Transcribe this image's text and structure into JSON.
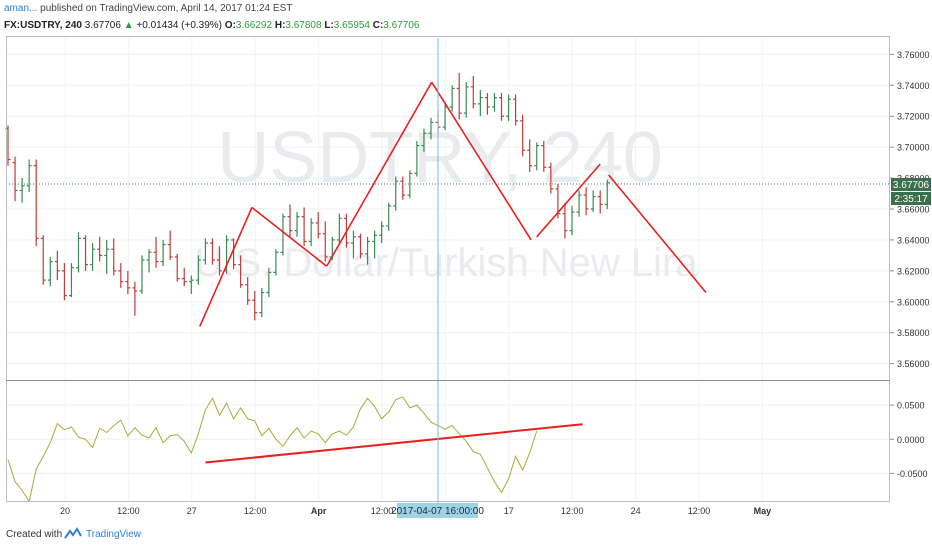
{
  "header": {
    "author": "aman...",
    "published": "published on TradingView.com, April 14, 2017 01:24 EST",
    "symbol": "FX:USDTRY, 240",
    "last": "3.67706",
    "change_arrow": "▲",
    "change": "+0.01434 (+0.39%)",
    "o_label": "O:",
    "o_value": "3.66292",
    "h_label": "H:",
    "h_value": "3.67808",
    "l_label": "L:",
    "l_value": "3.65954",
    "c_label": "C:",
    "c_value": "3.67706"
  },
  "footer": {
    "created_with": "Created with",
    "brand": "TradingView"
  },
  "colors": {
    "up": "#3a8a55",
    "down": "#c23b3b",
    "drawing": "#e8211f",
    "oscillator": "#a7ac3a",
    "crosshair": "#6fc0de",
    "label_bg": "#1f2a37",
    "crosshair_label_bg": "#9ed2e6"
  },
  "chart_data": {
    "type": "ohlc",
    "watermark": {
      "symbol": "USDTRY, 240",
      "name": "U.S. Dollar/Turkish New Lira"
    },
    "price_axis": {
      "ylim": [
        3.552,
        3.768
      ],
      "ticks": [
        "3.56000",
        "3.58000",
        "3.60000",
        "3.62000",
        "3.64000",
        "3.66000",
        "3.68000",
        "3.70000",
        "3.72000",
        "3.74000",
        "3.76000"
      ]
    },
    "current_price": "3.67706",
    "countdown": "2:35:17",
    "crosshair_time_label": "2017-04-07 16:00:00",
    "time_axis": {
      "labels": [
        "20",
        "12:00",
        "27",
        "12:00",
        "Apr",
        "12:00",
        "12:00",
        "17",
        "12:00",
        "24",
        "12:00",
        "May"
      ],
      "bold": [
        "Apr",
        "May"
      ]
    },
    "price_bars": [
      [
        3.712,
        3.714,
        3.688,
        3.692
      ],
      [
        3.69,
        3.694,
        3.665,
        3.672
      ],
      [
        3.672,
        3.68,
        3.664,
        3.675
      ],
      [
        3.675,
        3.692,
        3.671,
        3.688
      ],
      [
        3.688,
        3.692,
        3.636,
        3.641
      ],
      [
        3.641,
        3.643,
        3.611,
        3.614
      ],
      [
        3.614,
        3.629,
        3.61,
        3.626
      ],
      [
        3.626,
        3.633,
        3.614,
        3.62
      ],
      [
        3.62,
        3.625,
        3.601,
        3.604
      ],
      [
        3.604,
        3.625,
        3.603,
        3.622
      ],
      [
        3.622,
        3.645,
        3.619,
        3.641
      ],
      [
        3.641,
        3.643,
        3.62,
        3.624
      ],
      [
        3.624,
        3.638,
        3.62,
        3.634
      ],
      [
        3.634,
        3.642,
        3.626,
        3.63
      ],
      [
        3.63,
        3.64,
        3.618,
        3.634
      ],
      [
        3.634,
        3.641,
        3.617,
        3.62
      ],
      [
        3.62,
        3.625,
        3.609,
        3.613
      ],
      [
        3.613,
        3.62,
        3.605,
        3.609
      ],
      [
        3.609,
        3.613,
        3.591,
        3.607
      ],
      [
        3.607,
        3.63,
        3.605,
        3.627
      ],
      [
        3.627,
        3.634,
        3.619,
        3.632
      ],
      [
        3.632,
        3.642,
        3.622,
        3.626
      ],
      [
        3.626,
        3.64,
        3.623,
        3.637
      ],
      [
        3.637,
        3.646,
        3.627,
        3.629
      ],
      [
        3.629,
        3.631,
        3.613,
        3.615
      ],
      [
        3.615,
        3.622,
        3.61,
        3.613
      ],
      [
        3.613,
        3.617,
        3.605,
        3.614
      ],
      [
        3.614,
        3.63,
        3.611,
        3.627
      ],
      [
        3.627,
        3.641,
        3.624,
        3.638
      ],
      [
        3.638,
        3.641,
        3.624,
        3.627
      ],
      [
        3.627,
        3.636,
        3.617,
        3.62
      ],
      [
        3.62,
        3.643,
        3.618,
        3.64
      ],
      [
        3.64,
        3.641,
        3.621,
        3.624
      ],
      [
        3.624,
        3.63,
        3.609,
        3.611
      ],
      [
        3.611,
        3.616,
        3.598,
        3.601
      ],
      [
        3.601,
        3.607,
        3.588,
        3.593
      ],
      [
        3.593,
        3.609,
        3.59,
        3.606
      ],
      [
        3.606,
        3.622,
        3.603,
        3.619
      ],
      [
        3.619,
        3.634,
        3.617,
        3.632
      ],
      [
        3.632,
        3.657,
        3.63,
        3.655
      ],
      [
        3.655,
        3.663,
        3.642,
        3.646
      ],
      [
        3.646,
        3.658,
        3.642,
        3.655
      ],
      [
        3.655,
        3.661,
        3.636,
        3.639
      ],
      [
        3.639,
        3.654,
        3.636,
        3.651
      ],
      [
        3.651,
        3.658,
        3.641,
        3.644
      ],
      [
        3.644,
        3.652,
        3.626,
        3.629
      ],
      [
        3.629,
        3.642,
        3.627,
        3.64
      ],
      [
        3.64,
        3.657,
        3.637,
        3.654
      ],
      [
        3.654,
        3.657,
        3.635,
        3.638
      ],
      [
        3.638,
        3.646,
        3.628,
        3.642
      ],
      [
        3.642,
        3.644,
        3.628,
        3.631
      ],
      [
        3.631,
        3.642,
        3.624,
        3.639
      ],
      [
        3.639,
        3.646,
        3.628,
        3.643
      ],
      [
        3.643,
        3.652,
        3.638,
        3.649
      ],
      [
        3.649,
        3.664,
        3.646,
        3.662
      ],
      [
        3.662,
        3.681,
        3.659,
        3.678
      ],
      [
        3.678,
        3.681,
        3.666,
        3.669
      ],
      [
        3.669,
        3.685,
        3.667,
        3.683
      ],
      [
        3.683,
        3.704,
        3.681,
        3.701
      ],
      [
        3.701,
        3.712,
        3.697,
        3.709
      ],
      [
        3.709,
        3.719,
        3.705,
        3.716
      ],
      [
        3.716,
        3.724,
        3.709,
        3.713
      ],
      [
        3.713,
        3.729,
        3.711,
        3.726
      ],
      [
        3.726,
        3.74,
        3.723,
        3.738
      ],
      [
        3.738,
        3.748,
        3.718,
        3.722
      ],
      [
        3.722,
        3.742,
        3.719,
        3.739
      ],
      [
        3.739,
        3.746,
        3.725,
        3.728
      ],
      [
        3.728,
        3.737,
        3.72,
        3.732
      ],
      [
        3.732,
        3.735,
        3.721,
        3.726
      ],
      [
        3.726,
        3.735,
        3.723,
        3.732
      ],
      [
        3.732,
        3.735,
        3.717,
        3.72
      ],
      [
        3.72,
        3.734,
        3.717,
        3.731
      ],
      [
        3.731,
        3.734,
        3.714,
        3.717
      ],
      [
        3.717,
        3.721,
        3.694,
        3.698
      ],
      [
        3.698,
        3.705,
        3.684,
        3.688
      ],
      [
        3.688,
        3.703,
        3.685,
        3.701
      ],
      [
        3.701,
        3.704,
        3.684,
        3.687
      ],
      [
        3.687,
        3.69,
        3.67,
        3.673
      ],
      [
        3.673,
        3.676,
        3.654,
        3.657
      ],
      [
        3.657,
        3.664,
        3.641,
        3.646
      ],
      [
        3.646,
        3.662,
        3.643,
        3.658
      ],
      [
        3.658,
        3.672,
        3.655,
        3.669
      ],
      [
        3.669,
        3.674,
        3.656,
        3.66
      ],
      [
        3.66,
        3.672,
        3.658,
        3.668
      ],
      [
        3.668,
        3.672,
        3.657,
        3.663
      ],
      [
        3.663,
        3.679,
        3.66,
        3.677
      ]
    ],
    "drawn_lines": [
      [
        [
          27.2,
          3.584
        ],
        [
          34.6,
          3.661
        ]
      ],
      [
        [
          34.6,
          3.661
        ],
        [
          45.2,
          3.623
        ]
      ],
      [
        [
          45.2,
          3.623
        ],
        [
          60.1,
          3.742
        ]
      ],
      [
        [
          60.1,
          3.742
        ],
        [
          74.2,
          3.64
        ]
      ],
      [
        [
          75,
          3.642
        ],
        [
          84,
          3.689
        ]
      ],
      [
        [
          85.2,
          3.682
        ],
        [
          99,
          3.606
        ]
      ]
    ],
    "oscillator": {
      "ylim": [
        -0.086,
        0.078
      ],
      "ticks": [
        "0.0500",
        "0.0000",
        "-0.0500"
      ],
      "values": [
        -0.03,
        -0.062,
        -0.075,
        -0.091,
        -0.044,
        -0.025,
        -0.005,
        0.023,
        0.014,
        0.018,
        0.003,
        0.0,
        -0.012,
        0.016,
        0.01,
        0.02,
        0.028,
        0.005,
        0.017,
        0.006,
        0.002,
        0.017,
        -0.005,
        0.005,
        0.007,
        -0.003,
        -0.02,
        0.008,
        0.043,
        0.06,
        0.035,
        0.053,
        0.03,
        0.046,
        0.03,
        0.027,
        0.005,
        0.016,
        0.0,
        -0.01,
        0.005,
        0.017,
        0.002,
        0.012,
        0.008,
        -0.005,
        0.008,
        0.012,
        0.006,
        0.018,
        0.045,
        0.06,
        0.048,
        0.03,
        0.04,
        0.058,
        0.062,
        0.046,
        0.05,
        0.038,
        0.025,
        0.02,
        0.015,
        0.02,
        0.008,
        -0.003,
        -0.018,
        -0.022,
        -0.042,
        -0.062,
        -0.078,
        -0.058,
        -0.025,
        -0.045,
        -0.02,
        0.012
      ],
      "trend_line": [
        [
          28,
          -0.034
        ],
        [
          81.5,
          0.022
        ]
      ]
    }
  }
}
